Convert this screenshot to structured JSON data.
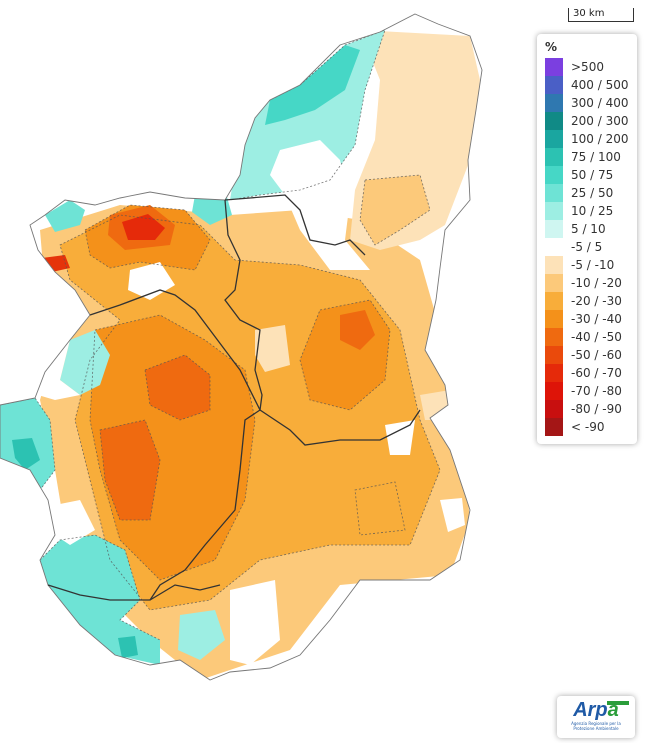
{
  "scale": {
    "label": "30 km"
  },
  "legend": {
    "title": "%",
    "classes": [
      {
        "label": ">500",
        "color": "#7b3fe0"
      },
      {
        "label": "400 / 500",
        "color": "#4a5fc6"
      },
      {
        "label": "300 / 400",
        "color": "#2f78b0"
      },
      {
        "label": "200 / 300",
        "color": "#108a86"
      },
      {
        "label": "100 / 200",
        "color": "#1aa6a0"
      },
      {
        "label": "75 / 100",
        "color": "#2cc2b2"
      },
      {
        "label": "50 / 75",
        "color": "#46d7c6"
      },
      {
        "label": "25 / 50",
        "color": "#6ee3d5"
      },
      {
        "label": "10 / 25",
        "color": "#9deee3"
      },
      {
        "label": "5 / 10",
        "color": "#cff6f1"
      },
      {
        "label": "-5 / 5",
        "color": "#ffffff"
      },
      {
        "label": "-5 / -10",
        "color": "#fde2b8"
      },
      {
        "label": "-10 / -20",
        "color": "#fcc97a"
      },
      {
        "label": "-20 / -30",
        "color": "#f8ad3a"
      },
      {
        "label": "-30 / -40",
        "color": "#f4911a"
      },
      {
        "label": "-40 / -50",
        "color": "#ef6a10"
      },
      {
        "label": "-50 / -60",
        "color": "#ea4a0c"
      },
      {
        "label": "-60 / -70",
        "color": "#e52a0a"
      },
      {
        "label": "-70 / -80",
        "color": "#de1408"
      },
      {
        "label": "-80 / -90",
        "color": "#c80f0f"
      },
      {
        "label": "< -90",
        "color": "#a41616"
      }
    ]
  },
  "logo": {
    "text_a": "Arp",
    "text_b": "a",
    "subtitle": "Agenzia Regionale per la Protezione Ambientale"
  }
}
